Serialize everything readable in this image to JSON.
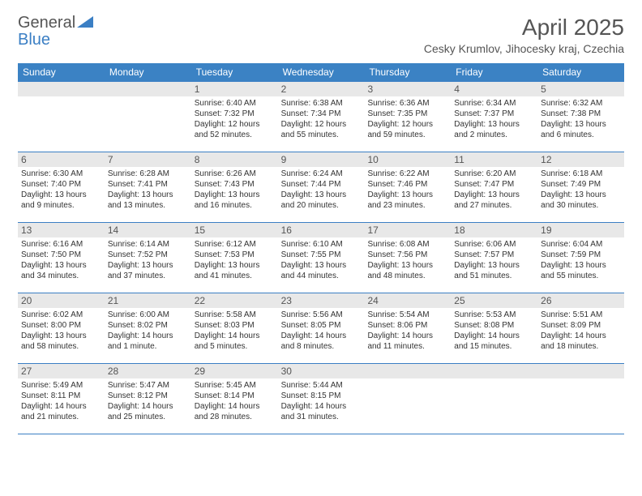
{
  "logo": {
    "text1": "General",
    "text2": "Blue",
    "text1_color": "#555555",
    "text2_color": "#3b7fc4",
    "shape_color": "#3b7fc4"
  },
  "title": "April 2025",
  "location": "Cesky Krumlov, Jihocesky kraj, Czechia",
  "colors": {
    "header_bg": "#3b82c4",
    "header_text": "#ffffff",
    "daynum_bg": "#e8e8e8",
    "daynum_text": "#555555",
    "border": "#3b7fc4",
    "body_text": "#333333"
  },
  "weekdays": [
    "Sunday",
    "Monday",
    "Tuesday",
    "Wednesday",
    "Thursday",
    "Friday",
    "Saturday"
  ],
  "weeks": [
    [
      {
        "day": "",
        "sunrise": "",
        "sunset": "",
        "daylight": ""
      },
      {
        "day": "",
        "sunrise": "",
        "sunset": "",
        "daylight": ""
      },
      {
        "day": "1",
        "sunrise": "Sunrise: 6:40 AM",
        "sunset": "Sunset: 7:32 PM",
        "daylight": "Daylight: 12 hours and 52 minutes."
      },
      {
        "day": "2",
        "sunrise": "Sunrise: 6:38 AM",
        "sunset": "Sunset: 7:34 PM",
        "daylight": "Daylight: 12 hours and 55 minutes."
      },
      {
        "day": "3",
        "sunrise": "Sunrise: 6:36 AM",
        "sunset": "Sunset: 7:35 PM",
        "daylight": "Daylight: 12 hours and 59 minutes."
      },
      {
        "day": "4",
        "sunrise": "Sunrise: 6:34 AM",
        "sunset": "Sunset: 7:37 PM",
        "daylight": "Daylight: 13 hours and 2 minutes."
      },
      {
        "day": "5",
        "sunrise": "Sunrise: 6:32 AM",
        "sunset": "Sunset: 7:38 PM",
        "daylight": "Daylight: 13 hours and 6 minutes."
      }
    ],
    [
      {
        "day": "6",
        "sunrise": "Sunrise: 6:30 AM",
        "sunset": "Sunset: 7:40 PM",
        "daylight": "Daylight: 13 hours and 9 minutes."
      },
      {
        "day": "7",
        "sunrise": "Sunrise: 6:28 AM",
        "sunset": "Sunset: 7:41 PM",
        "daylight": "Daylight: 13 hours and 13 minutes."
      },
      {
        "day": "8",
        "sunrise": "Sunrise: 6:26 AM",
        "sunset": "Sunset: 7:43 PM",
        "daylight": "Daylight: 13 hours and 16 minutes."
      },
      {
        "day": "9",
        "sunrise": "Sunrise: 6:24 AM",
        "sunset": "Sunset: 7:44 PM",
        "daylight": "Daylight: 13 hours and 20 minutes."
      },
      {
        "day": "10",
        "sunrise": "Sunrise: 6:22 AM",
        "sunset": "Sunset: 7:46 PM",
        "daylight": "Daylight: 13 hours and 23 minutes."
      },
      {
        "day": "11",
        "sunrise": "Sunrise: 6:20 AM",
        "sunset": "Sunset: 7:47 PM",
        "daylight": "Daylight: 13 hours and 27 minutes."
      },
      {
        "day": "12",
        "sunrise": "Sunrise: 6:18 AM",
        "sunset": "Sunset: 7:49 PM",
        "daylight": "Daylight: 13 hours and 30 minutes."
      }
    ],
    [
      {
        "day": "13",
        "sunrise": "Sunrise: 6:16 AM",
        "sunset": "Sunset: 7:50 PM",
        "daylight": "Daylight: 13 hours and 34 minutes."
      },
      {
        "day": "14",
        "sunrise": "Sunrise: 6:14 AM",
        "sunset": "Sunset: 7:52 PM",
        "daylight": "Daylight: 13 hours and 37 minutes."
      },
      {
        "day": "15",
        "sunrise": "Sunrise: 6:12 AM",
        "sunset": "Sunset: 7:53 PM",
        "daylight": "Daylight: 13 hours and 41 minutes."
      },
      {
        "day": "16",
        "sunrise": "Sunrise: 6:10 AM",
        "sunset": "Sunset: 7:55 PM",
        "daylight": "Daylight: 13 hours and 44 minutes."
      },
      {
        "day": "17",
        "sunrise": "Sunrise: 6:08 AM",
        "sunset": "Sunset: 7:56 PM",
        "daylight": "Daylight: 13 hours and 48 minutes."
      },
      {
        "day": "18",
        "sunrise": "Sunrise: 6:06 AM",
        "sunset": "Sunset: 7:57 PM",
        "daylight": "Daylight: 13 hours and 51 minutes."
      },
      {
        "day": "19",
        "sunrise": "Sunrise: 6:04 AM",
        "sunset": "Sunset: 7:59 PM",
        "daylight": "Daylight: 13 hours and 55 minutes."
      }
    ],
    [
      {
        "day": "20",
        "sunrise": "Sunrise: 6:02 AM",
        "sunset": "Sunset: 8:00 PM",
        "daylight": "Daylight: 13 hours and 58 minutes."
      },
      {
        "day": "21",
        "sunrise": "Sunrise: 6:00 AM",
        "sunset": "Sunset: 8:02 PM",
        "daylight": "Daylight: 14 hours and 1 minute."
      },
      {
        "day": "22",
        "sunrise": "Sunrise: 5:58 AM",
        "sunset": "Sunset: 8:03 PM",
        "daylight": "Daylight: 14 hours and 5 minutes."
      },
      {
        "day": "23",
        "sunrise": "Sunrise: 5:56 AM",
        "sunset": "Sunset: 8:05 PM",
        "daylight": "Daylight: 14 hours and 8 minutes."
      },
      {
        "day": "24",
        "sunrise": "Sunrise: 5:54 AM",
        "sunset": "Sunset: 8:06 PM",
        "daylight": "Daylight: 14 hours and 11 minutes."
      },
      {
        "day": "25",
        "sunrise": "Sunrise: 5:53 AM",
        "sunset": "Sunset: 8:08 PM",
        "daylight": "Daylight: 14 hours and 15 minutes."
      },
      {
        "day": "26",
        "sunrise": "Sunrise: 5:51 AM",
        "sunset": "Sunset: 8:09 PM",
        "daylight": "Daylight: 14 hours and 18 minutes."
      }
    ],
    [
      {
        "day": "27",
        "sunrise": "Sunrise: 5:49 AM",
        "sunset": "Sunset: 8:11 PM",
        "daylight": "Daylight: 14 hours and 21 minutes."
      },
      {
        "day": "28",
        "sunrise": "Sunrise: 5:47 AM",
        "sunset": "Sunset: 8:12 PM",
        "daylight": "Daylight: 14 hours and 25 minutes."
      },
      {
        "day": "29",
        "sunrise": "Sunrise: 5:45 AM",
        "sunset": "Sunset: 8:14 PM",
        "daylight": "Daylight: 14 hours and 28 minutes."
      },
      {
        "day": "30",
        "sunrise": "Sunrise: 5:44 AM",
        "sunset": "Sunset: 8:15 PM",
        "daylight": "Daylight: 14 hours and 31 minutes."
      },
      {
        "day": "",
        "sunrise": "",
        "sunset": "",
        "daylight": ""
      },
      {
        "day": "",
        "sunrise": "",
        "sunset": "",
        "daylight": ""
      },
      {
        "day": "",
        "sunrise": "",
        "sunset": "",
        "daylight": ""
      }
    ]
  ]
}
